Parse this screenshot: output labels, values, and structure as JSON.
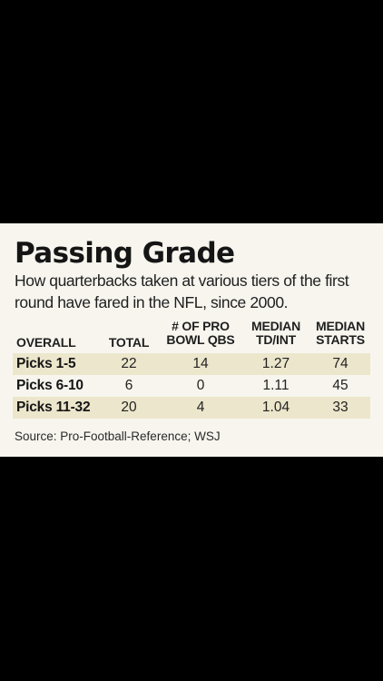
{
  "chart_data": {
    "type": "table",
    "title": "Passing Grade",
    "subtitle": "How quarterbacks taken at various tiers of the first round have fared in the NFL, since 2000.",
    "columns": [
      {
        "key": "overall",
        "lines": [
          "OVERALL"
        ]
      },
      {
        "key": "total",
        "lines": [
          "TOTAL"
        ]
      },
      {
        "key": "pro_bowl_qbs",
        "lines": [
          "# OF PRO",
          "BOWL QBS"
        ]
      },
      {
        "key": "median_td_int",
        "lines": [
          "MEDIAN",
          "TD/INT"
        ]
      },
      {
        "key": "median_starts",
        "lines": [
          "MEDIAN",
          "STARTS"
        ]
      }
    ],
    "rows": [
      {
        "label": "Picks 1-5",
        "total": "22",
        "pro_bowl_qbs": "14",
        "median_td_int": "1.27",
        "median_starts": "74"
      },
      {
        "label": "Picks 6-10",
        "total": "6",
        "pro_bowl_qbs": "0",
        "median_td_int": "1.11",
        "median_starts": "45"
      },
      {
        "label": "Picks 11-32",
        "total": "20",
        "pro_bowl_qbs": "4",
        "median_td_int": "1.04",
        "median_starts": "33"
      }
    ],
    "source": "Source: Pro-Football-Reference; WSJ"
  },
  "colors": {
    "page_background": "#000000",
    "panel_background": "#f7f5ee",
    "row_shade": "#ece6cc",
    "text": "#1a1a1a"
  }
}
